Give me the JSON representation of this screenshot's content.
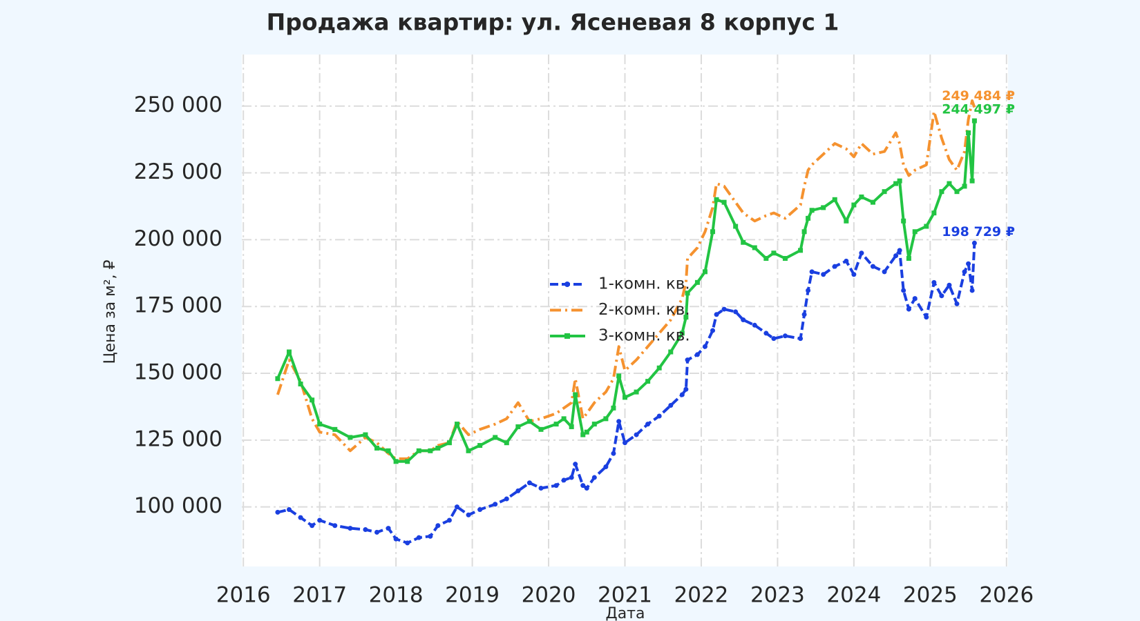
{
  "chart_data": {
    "type": "line",
    "title": "Продажа квартир: ул. Ясеневая 8 корпус 1",
    "xlabel": "Дата",
    "ylabel": "Цена за м², ₽",
    "x": [
      2016.45,
      2016.6,
      2016.75,
      2016.9,
      2017.0,
      2017.2,
      2017.4,
      2017.6,
      2017.75,
      2017.9,
      2018.0,
      2018.15,
      2018.3,
      2018.45,
      2018.55,
      2018.7,
      2018.8,
      2018.95,
      2019.1,
      2019.3,
      2019.45,
      2019.6,
      2019.75,
      2019.9,
      2020.1,
      2020.2,
      2020.3,
      2020.35,
      2020.45,
      2020.5,
      2020.6,
      2020.75,
      2020.85,
      2020.92,
      2021.0,
      2021.15,
      2021.3,
      2021.45,
      2021.6,
      2021.75,
      2021.8,
      2021.82,
      2021.95,
      2022.05,
      2022.15,
      2022.2,
      2022.3,
      2022.45,
      2022.55,
      2022.7,
      2022.85,
      2022.95,
      2023.1,
      2023.3,
      2023.35,
      2023.4,
      2023.45,
      2023.6,
      2023.75,
      2023.9,
      2024.0,
      2024.1,
      2024.25,
      2024.4,
      2024.55,
      2024.6,
      2024.65,
      2024.72,
      2024.8,
      2024.95,
      2025.05,
      2025.15,
      2025.25,
      2025.35,
      2025.45,
      2025.5,
      2025.55,
      2025.58
    ],
    "series": [
      {
        "name": "1-комн. кв.",
        "color": "#1a3fe0",
        "style": "dashed",
        "marker": "circle",
        "last_value_label": "198 729 ₽",
        "values": [
          98000,
          99000,
          96000,
          93000,
          95000,
          93000,
          92000,
          91500,
          90500,
          92000,
          88000,
          86500,
          88500,
          89000,
          93000,
          95000,
          100000,
          97000,
          99000,
          101000,
          103000,
          106000,
          109000,
          107000,
          108000,
          110000,
          111000,
          116000,
          108000,
          107000,
          111000,
          115000,
          120000,
          132000,
          124000,
          127000,
          131000,
          134000,
          138000,
          142000,
          144000,
          155000,
          157000,
          160000,
          166000,
          172000,
          174000,
          173000,
          170000,
          168000,
          165000,
          163000,
          164000,
          163000,
          172000,
          181000,
          188000,
          187000,
          190000,
          192000,
          187000,
          195000,
          190000,
          188000,
          194000,
          196000,
          181000,
          174000,
          178000,
          171000,
          184000,
          179000,
          183000,
          176000,
          188000,
          191000,
          181000,
          198729
        ]
      },
      {
        "name": "2-комн. кв.",
        "color": "#f5922f",
        "style": "dashdot",
        "marker": "none",
        "last_value_label": "249 484 ₽",
        "values": [
          142000,
          155000,
          147000,
          133000,
          128000,
          127000,
          121000,
          126000,
          124000,
          120000,
          118000,
          118000,
          121000,
          121000,
          123000,
          124000,
          132000,
          127000,
          129000,
          131000,
          133000,
          139000,
          132000,
          133000,
          135000,
          137000,
          139000,
          148000,
          133000,
          135000,
          139000,
          143000,
          148000,
          160000,
          151000,
          155000,
          160000,
          165000,
          170000,
          178000,
          184000,
          193000,
          197000,
          203000,
          212000,
          221000,
          220000,
          214000,
          210000,
          207000,
          209000,
          210000,
          208000,
          213000,
          220000,
          226000,
          228000,
          232000,
          236000,
          234000,
          231000,
          236000,
          232000,
          233000,
          240000,
          236000,
          228000,
          224000,
          226000,
          228000,
          248000,
          238000,
          230000,
          226000,
          233000,
          245000,
          252000,
          249484
        ]
      },
      {
        "name": "3-комн. кв.",
        "color": "#22c443",
        "style": "solid",
        "marker": "square",
        "last_value_label": "244 497 ₽",
        "values": [
          148000,
          158000,
          146000,
          140000,
          131000,
          129000,
          126000,
          127000,
          122000,
          121000,
          117000,
          117000,
          121000,
          121000,
          122000,
          124000,
          131000,
          121000,
          123000,
          126000,
          124000,
          130000,
          132000,
          129000,
          131000,
          133000,
          130000,
          142000,
          127000,
          128000,
          131000,
          133000,
          137000,
          149000,
          141000,
          143000,
          147000,
          152000,
          158000,
          165000,
          171000,
          180000,
          184000,
          188000,
          203000,
          215000,
          214000,
          205000,
          199000,
          197000,
          193000,
          195000,
          193000,
          196000,
          203000,
          208000,
          211000,
          212000,
          215000,
          207000,
          213000,
          216000,
          214000,
          218000,
          221000,
          222000,
          207000,
          193000,
          203000,
          205000,
          210000,
          218000,
          221000,
          218000,
          220000,
          240000,
          222000,
          244497
        ]
      }
    ],
    "xlim": [
      2015.98,
      2026.02
    ],
    "xticks": [
      2016,
      2017,
      2018,
      2019,
      2020,
      2021,
      2022,
      2023,
      2024,
      2025,
      2026
    ],
    "ylim": [
      77700,
      269300
    ],
    "yticks": [
      {
        "value": 100000,
        "label": "100 000"
      },
      {
        "value": 125000,
        "label": "125 000"
      },
      {
        "value": 150000,
        "label": "150 000"
      },
      {
        "value": 175000,
        "label": "175 000"
      },
      {
        "value": 200000,
        "label": "200 000"
      },
      {
        "value": 225000,
        "label": "225 000"
      },
      {
        "value": 250000,
        "label": "250 000"
      }
    ],
    "grid": true,
    "legend_loc": "center"
  }
}
